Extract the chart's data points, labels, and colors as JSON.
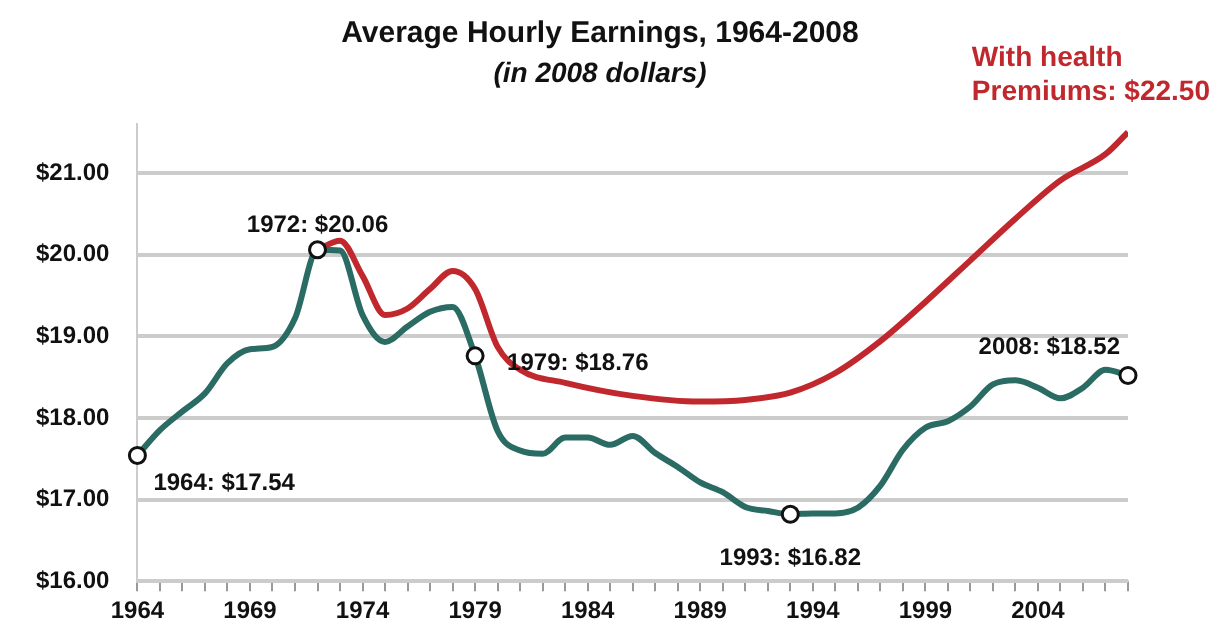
{
  "chart_data": {
    "type": "line",
    "title": "Average Hourly Earnings, 1964-2008",
    "subtitle": "(in 2008 dollars)",
    "x": [
      1964,
      1965,
      1966,
      1967,
      1968,
      1969,
      1970,
      1971,
      1972,
      1973,
      1974,
      1975,
      1976,
      1977,
      1978,
      1979,
      1980,
      1981,
      1982,
      1983,
      1984,
      1985,
      1986,
      1987,
      1988,
      1989,
      1990,
      1991,
      1992,
      1993,
      1994,
      1995,
      1996,
      1997,
      1998,
      1999,
      2000,
      2001,
      2002,
      2003,
      2004,
      2005,
      2006,
      2007,
      2008
    ],
    "series": [
      {
        "color": "#2a6b63",
        "values": [
          17.54,
          17.85,
          18.08,
          18.3,
          18.67,
          18.84,
          18.87,
          19.22,
          20.06,
          20.05,
          19.26,
          18.93,
          19.12,
          19.3,
          19.36,
          18.76,
          17.84,
          17.6,
          17.56,
          17.76,
          17.76,
          17.67,
          17.78,
          17.57,
          17.4,
          17.21,
          17.09,
          16.91,
          16.86,
          16.82,
          16.83,
          16.83,
          16.9,
          17.17,
          17.61,
          17.88,
          17.96,
          18.14,
          18.41,
          18.46,
          18.37,
          18.24,
          18.37,
          18.59,
          18.52
        ]
      },
      {
        "name": "With health Premiums: $22.50",
        "color": "#c0282d",
        "x": [
          1972,
          1973,
          1974,
          1975,
          1976,
          1977,
          1978,
          1979,
          1980,
          1981,
          1983,
          1986,
          1989,
          1991,
          1993,
          1995,
          1997,
          1999,
          2001,
          2003,
          2005,
          2007,
          2008
        ],
        "values": [
          20.06,
          20.17,
          19.74,
          19.26,
          19.34,
          19.58,
          19.8,
          19.58,
          18.87,
          18.59,
          18.43,
          18.27,
          18.2,
          18.22,
          18.31,
          18.55,
          18.94,
          19.42,
          19.93,
          20.44,
          20.91,
          21.23,
          21.5
        ]
      }
    ],
    "xlim": [
      1964,
      2008
    ],
    "xticks": [
      1964,
      {
        "value": 1965,
        "label": null
      },
      {
        "value": 1966,
        "label": null
      },
      {
        "value": 1967,
        "label": null
      },
      {
        "value": 1968,
        "label": null
      },
      1969,
      {
        "value": 1970,
        "label": null
      },
      {
        "value": 1971,
        "label": null
      },
      {
        "value": 1972,
        "label": null
      },
      {
        "value": 1973,
        "label": null
      },
      1974,
      {
        "value": 1975,
        "label": null
      },
      {
        "value": 1976,
        "label": null
      },
      {
        "value": 1977,
        "label": null
      },
      {
        "value": 1978,
        "label": null
      },
      1979,
      {
        "value": 1980,
        "label": null
      },
      {
        "value": 1981,
        "label": null
      },
      {
        "value": 1982,
        "label": null
      },
      {
        "value": 1983,
        "label": null
      },
      1984,
      {
        "value": 1985,
        "label": null
      },
      {
        "value": 1986,
        "label": null
      },
      {
        "value": 1987,
        "label": null
      },
      {
        "value": 1988,
        "label": null
      },
      1989,
      {
        "value": 1990,
        "label": null
      },
      {
        "value": 1991,
        "label": null
      },
      {
        "value": 1992,
        "label": null
      },
      {
        "value": 1993,
        "label": null
      },
      1994,
      {
        "value": 1995,
        "label": null
      },
      {
        "value": 1996,
        "label": null
      },
      {
        "value": 1997,
        "label": null
      },
      {
        "value": 1998,
        "label": null
      },
      1999,
      {
        "value": 2000,
        "label": null
      },
      {
        "value": 2001,
        "label": null
      },
      {
        "value": 2002,
        "label": null
      },
      {
        "value": 2003,
        "label": null
      },
      2004,
      {
        "value": 2005,
        "label": null
      },
      {
        "value": 2006,
        "label": null
      },
      {
        "value": 2007,
        "label": null
      },
      {
        "value": 2008,
        "label": null
      }
    ],
    "ylim": [
      16,
      21.6
    ],
    "yticks": [
      {
        "value": 16,
        "label": "$16.00"
      },
      {
        "value": 17,
        "label": "$17.00"
      },
      {
        "value": 18,
        "label": "$18.00"
      },
      {
        "value": 19,
        "label": "$19.00"
      },
      {
        "value": 20,
        "label": "$20.00"
      },
      {
        "value": 21,
        "label": "$21.00"
      }
    ],
    "annotations": [
      {
        "text": "1964: $17.54",
        "x": 1964,
        "y": 17.54
      },
      {
        "text": "1972: $20.06",
        "x": 1972,
        "y": 20.06
      },
      {
        "text": "1979: $18.76",
        "x": 1979,
        "y": 18.76
      },
      {
        "text": "1993: $16.82",
        "x": 1993,
        "y": 16.82
      },
      {
        "text": "2008: $18.52",
        "x": 2008,
        "y": 18.52
      }
    ],
    "grid": "y",
    "legend": false,
    "marker": "none",
    "line_style": "solid"
  }
}
